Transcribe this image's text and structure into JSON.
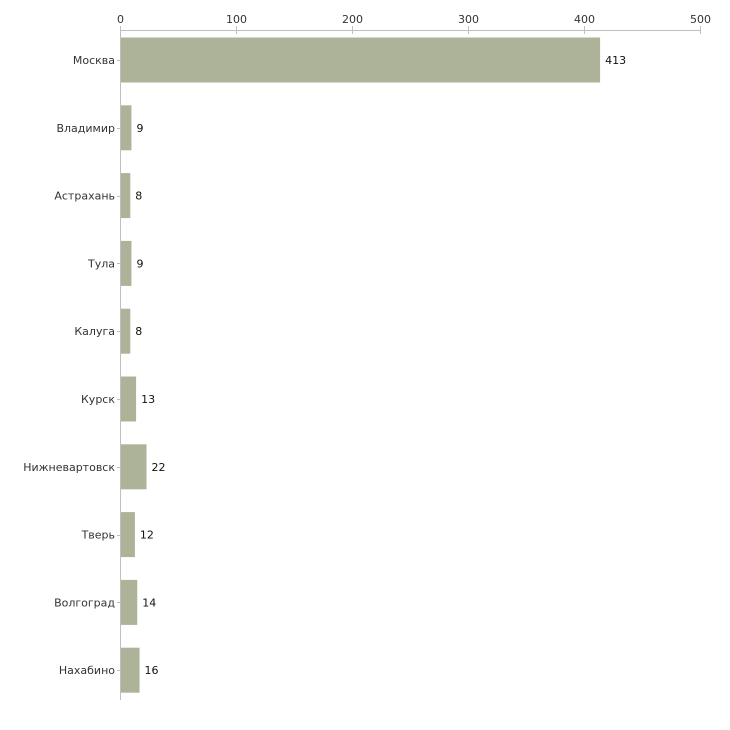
{
  "chart_data": {
    "type": "bar",
    "orientation": "horizontal",
    "title": "",
    "xlabel": "",
    "ylabel": "",
    "xlim": [
      0,
      500
    ],
    "x_ticks": [
      0,
      100,
      200,
      300,
      400,
      500
    ],
    "axis_position": "top",
    "grid": false,
    "legend": "none",
    "bar_color": "#adb398",
    "categories": [
      "Москва",
      "Владимир",
      "Астрахань",
      "Тула",
      "Калуга",
      "Курск",
      "Нижневартовск",
      "Тверь",
      "Волгоград",
      "Нахабино"
    ],
    "values": [
      413,
      9,
      8,
      9,
      8,
      13,
      22,
      12,
      14,
      16
    ]
  }
}
